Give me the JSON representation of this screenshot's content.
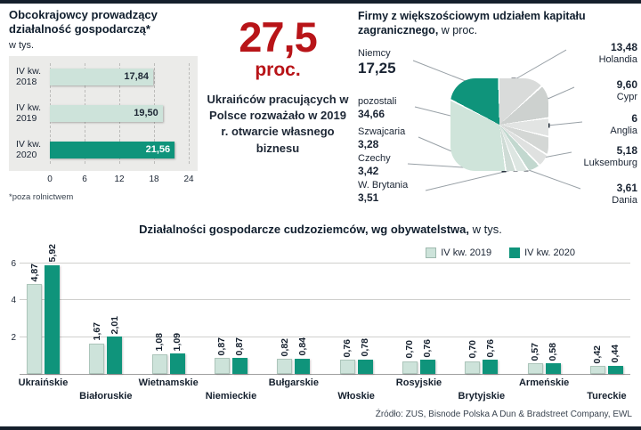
{
  "colors": {
    "light_green": "#cde3da",
    "dark_teal": "#0f947b",
    "accent_red": "#b81418",
    "text_dark": "#1d2735"
  },
  "stat": {
    "number": "27,5",
    "unit": "proc.",
    "description": "Ukraińców pracujących w Polsce rozważało w 2019 r. otwarcie własnego biznesu"
  },
  "source": "Źródło: ZUS, Bisnode Polska A Dun & Bradstreet Company, EWL",
  "chart_data": [
    {
      "type": "bar",
      "orientation": "horizontal",
      "title": "Obcokrajowcy prowadzący działalność gospodarczą*",
      "subtitle": "w tys.",
      "footnote": "*poza rolnictwem",
      "categories": [
        "IV kw. 2018",
        "IV kw. 2019",
        "IV kw. 2020"
      ],
      "values": [
        17.84,
        19.5,
        21.56
      ],
      "value_labels": [
        "17,84",
        "19,50",
        "21,56"
      ],
      "highlight_index": 2,
      "x_ticks": [
        0,
        6,
        12,
        18,
        24
      ],
      "xlim": [
        0,
        24
      ],
      "grid": "dashed-vertical"
    },
    {
      "type": "pie",
      "title_bold": "Firmy z większościowym udziałem kapitału zagranicznego,",
      "title_rest": " w proc.",
      "shape": "rounded-square",
      "slices": [
        {
          "name": "Holandia",
          "pct": 13.48,
          "color": "#d9dbda"
        },
        {
          "name": "Cypr",
          "pct": 9.6,
          "color": "#cdd1cf"
        },
        {
          "name": "Anglia",
          "pct": 6,
          "color": "#e2e4e3"
        },
        {
          "name": "Luksemburg",
          "pct": 5.18,
          "color": "#d4d7d5"
        },
        {
          "name": "Dania",
          "pct": 3.61,
          "color": "#dfe1e0"
        },
        {
          "name": "W. Brytania",
          "pct": 3.51,
          "color": "#c2d8cf"
        },
        {
          "name": "Czechy",
          "pct": 3.42,
          "color": "#dde6e2"
        },
        {
          "name": "Szwajcaria",
          "pct": 3.28,
          "color": "#cfdcd6"
        },
        {
          "name": "pozostali",
          "pct": 34.66,
          "color": "#cfe4da"
        },
        {
          "name": "Niemcy",
          "pct": 17.25,
          "color": "#0f947b"
        }
      ],
      "left_labels": [
        {
          "name": "Niemcy",
          "value": "17,25"
        },
        {
          "name": "pozostali",
          "value": "34,66"
        },
        {
          "name": "Szwajcaria",
          "value": "3,28"
        },
        {
          "name": "Czechy",
          "value": "3,42"
        },
        {
          "name": "W. Brytania",
          "value": "3,51"
        }
      ],
      "right_labels": [
        {
          "name": "Holandia",
          "value": "13,48"
        },
        {
          "name": "Cypr",
          "value": "9,60"
        },
        {
          "name": "Anglia",
          "value": "6"
        },
        {
          "name": "Luksemburg",
          "value": "5,18"
        },
        {
          "name": "Dania",
          "value": "3,61"
        }
      ]
    },
    {
      "type": "bar",
      "grouped": true,
      "title_bold": "Działalności gospodarcze cudzoziemców, wg obywatelstwa,",
      "title_rest": " w tys.",
      "legend": [
        {
          "label": "IV kw. 2019"
        },
        {
          "label": "IV kw. 2020"
        }
      ],
      "legend_position": "top-right",
      "categories": [
        "Ukraińskie",
        "Białoruskie",
        "Wietnamskie",
        "Niemieckie",
        "Bułgarskie",
        "Włoskie",
        "Rosyjskie",
        "Brytyjskie",
        "Armeńskie",
        "Tureckie"
      ],
      "series": [
        {
          "name": "IV kw. 2019",
          "values": [
            4.87,
            1.67,
            1.08,
            0.87,
            0.82,
            0.76,
            0.7,
            0.7,
            0.57,
            0.42
          ],
          "labels": [
            "4,87",
            "1,67",
            "1,08",
            "0,87",
            "0,82",
            "0,76",
            "0,70",
            "0,70",
            "0,57",
            "0,42"
          ]
        },
        {
          "name": "IV kw. 2020",
          "values": [
            5.92,
            2.01,
            1.09,
            0.87,
            0.84,
            0.78,
            0.76,
            0.76,
            0.58,
            0.44
          ],
          "labels": [
            "5,92",
            "2,01",
            "1,09",
            "0,87",
            "0,84",
            "0,78",
            "0,76",
            "0,76",
            "0,58",
            "0,44"
          ]
        }
      ],
      "y_ticks": [
        2,
        4,
        6
      ],
      "ylim": [
        0,
        6
      ],
      "grid": "horizontal"
    }
  ]
}
